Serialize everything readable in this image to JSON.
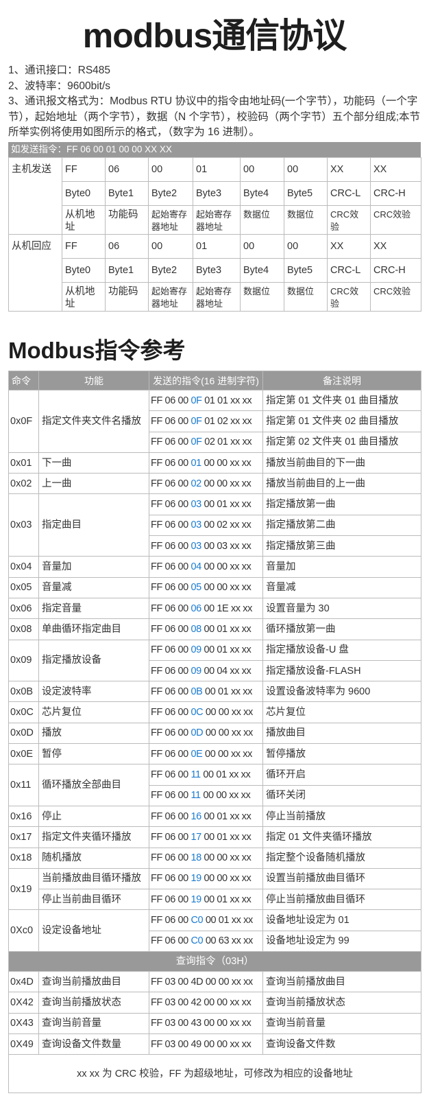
{
  "title": "modbus通信协议",
  "intro": [
    "1、通讯接口：RS485",
    "2、波特率：9600bit/s",
    "3、通讯报文格式为：Modbus RTU 协议中的指令由地址码(一个字节），功能码（一个字节），起始地址（两个字节），数据（N 个字节），校验码（两个字节）五个部分组成;本节所举实例将使用如图所示的格式，（数字为 16 进制）。"
  ],
  "send_example": "如发送指令：FF 06 00 01 00 00 XX XX",
  "frame": {
    "sections": [
      {
        "label": "主机发送",
        "values": [
          "FF",
          "06",
          "00",
          "01",
          "00",
          "00",
          "XX",
          "XX"
        ]
      },
      {
        "label": "从机回应",
        "values": [
          "FF",
          "06",
          "00",
          "01",
          "00",
          "00",
          "XX",
          "XX"
        ]
      }
    ],
    "bytes": [
      "Byte0",
      "Byte1",
      "Byte2",
      "Byte3",
      "Byte4",
      "Byte5",
      "CRC-L",
      "CRC-H"
    ],
    "desc": [
      "从机地址",
      "功能码",
      "起始寄存器地址",
      "起始寄存器地址",
      "数据位",
      "数据位",
      "CRC效验",
      "CRC效验"
    ]
  },
  "ref_title": "Modbus指令参考",
  "ref": {
    "headers": [
      "命令",
      "功能",
      "发送的指令(16 进制字符)",
      "备注说明"
    ],
    "highlight_color": "#1a7bd0",
    "groups": [
      {
        "cmd": "0x0F",
        "func": "指定文件夹文件名播放",
        "rows": [
          {
            "send": "FF 06 00 0F 01 01 xx xx",
            "note": "指定第 01 文件夹 01 曲目播放"
          },
          {
            "send": "FF 06 00 0F 01 02 xx xx",
            "note": "指定第 01 文件夹 02 曲目播放"
          },
          {
            "send": "FF 06 00 0F 02 01 xx xx",
            "note": "指定第 02 文件夹 01 曲目播放"
          }
        ]
      },
      {
        "cmd": "0x01",
        "func": "下一曲",
        "rows": [
          {
            "send": "FF 06 00 01 00 00 xx xx",
            "note": "播放当前曲目的下一曲"
          }
        ]
      },
      {
        "cmd": "0x02",
        "func": "上一曲",
        "rows": [
          {
            "send": "FF 06 00 02 00 00 xx xx",
            "note": "播放当前曲目的上一曲"
          }
        ]
      },
      {
        "cmd": "0x03",
        "func": "指定曲目",
        "rows": [
          {
            "send": "FF 06 00 03 00 01 xx xx",
            "note": "指定播放第一曲"
          },
          {
            "send": "FF 06 00 03 00 02 xx xx",
            "note": "指定播放第二曲"
          },
          {
            "send": "FF 06 00 03 00 03 xx xx",
            "note": "指定播放第三曲"
          }
        ]
      },
      {
        "cmd": "0x04",
        "func": "音量加",
        "rows": [
          {
            "send": "FF 06 00 04 00 00 xx xx",
            "note": "音量加"
          }
        ]
      },
      {
        "cmd": "0x05",
        "func": "音量减",
        "rows": [
          {
            "send": "FF 06 00 05 00 00 xx xx",
            "note": "音量减"
          }
        ]
      },
      {
        "cmd": "0x06",
        "func": "指定音量",
        "rows": [
          {
            "send": "FF 06 00 06 00 1E xx xx",
            "note": "设置音量为 30"
          }
        ]
      },
      {
        "cmd": "0x08",
        "func": "单曲循环指定曲目",
        "rows": [
          {
            "send": "FF 06 00 08 00 01 xx xx",
            "note": "循环播放第一曲"
          }
        ]
      },
      {
        "cmd": "0x09",
        "func": "指定播放设备",
        "rows": [
          {
            "send": "FF 06 00 09 00 01 xx xx",
            "note": "指定播放设备-U 盘"
          },
          {
            "send": "FF 06 00 09 00 04 xx xx",
            "note": "指定播放设备-FLASH"
          }
        ]
      },
      {
        "cmd": "0x0B",
        "func": "设定波特率",
        "rows": [
          {
            "send": "FF 06 00 0B 00 01 xx xx",
            "note": "设置设备波特率为 9600"
          }
        ]
      },
      {
        "cmd": "0x0C",
        "func": "芯片复位",
        "rows": [
          {
            "send": "FF 06 00 0C 00 00 xx xx",
            "note": "芯片复位"
          }
        ]
      },
      {
        "cmd": "0x0D",
        "func": "播放",
        "rows": [
          {
            "send": "FF 06 00 0D 00 00 xx xx",
            "note": "播放曲目"
          }
        ]
      },
      {
        "cmd": "0x0E",
        "func": "暂停",
        "rows": [
          {
            "send": "FF 06 00 0E 00 00 xx xx",
            "note": "暂停播放"
          }
        ]
      },
      {
        "cmd": "0x11",
        "func": "循环播放全部曲目",
        "rows": [
          {
            "send": "FF 06 00 11 00 01 xx xx",
            "note": "循环开启"
          },
          {
            "send": "FF 06 00 11 00 00 xx xx",
            "note": "循环关闭"
          }
        ]
      },
      {
        "cmd": "0x16",
        "func": "停止",
        "rows": [
          {
            "send": "FF 06 00 16 00 01 xx xx",
            "note": "停止当前播放"
          }
        ]
      },
      {
        "cmd": "0x17",
        "func": "指定文件夹循环播放",
        "rows": [
          {
            "send": "FF 06 00 17 00 01 xx xx",
            "note": "指定 01 文件夹循环播放"
          }
        ]
      },
      {
        "cmd": "0x18",
        "func": "随机播放",
        "rows": [
          {
            "send": "FF 06 00 18 00 00 xx xx",
            "note": "指定整个设备随机播放"
          }
        ]
      },
      {
        "cmd": "0x19",
        "rows": [
          {
            "func": "当前播放曲目循环播放",
            "send": "FF 06 00 19 00 00 xx xx",
            "note": "设置当前播放曲目循环"
          },
          {
            "func": "停止当前曲目循环",
            "send": "FF 06 00 19 00 01 xx xx",
            "note": "停止当前播放曲目循环"
          }
        ]
      },
      {
        "cmd": "0Xc0",
        "func": "设定设备地址",
        "rows": [
          {
            "send": "FF 06 00 C0 00 01 xx xx",
            "note": "设备地址设定为 01"
          },
          {
            "send": "FF 06 00 C0 00 63 xx xx",
            "note": "设备地址设定为 99"
          }
        ]
      }
    ],
    "query_section": "查询指令（03H）",
    "query": [
      {
        "cmd": "0x4D",
        "func": "查询当前播放曲目",
        "send": "FF 03 00 4D 00 00 xx xx",
        "note": "查询当前播放曲目"
      },
      {
        "cmd": "0X42",
        "func": "查询当前播放状态",
        "send": "FF 03 00 42 00 00 xx xx",
        "note": "查询当前播放状态"
      },
      {
        "cmd": "0X43",
        "func": "查询当前音量",
        "send": "FF 03 00 43 00 00 xx xx",
        "note": "查询当前音量"
      },
      {
        "cmd": "0X49",
        "func": "查询设备文件数量",
        "send": "FF 03 00 49 00 00 xx xx",
        "note": "查询设备文件数"
      }
    ],
    "footer": "xx xx 为 CRC 校验，FF 为超级地址，可修改为相应的设备地址"
  }
}
